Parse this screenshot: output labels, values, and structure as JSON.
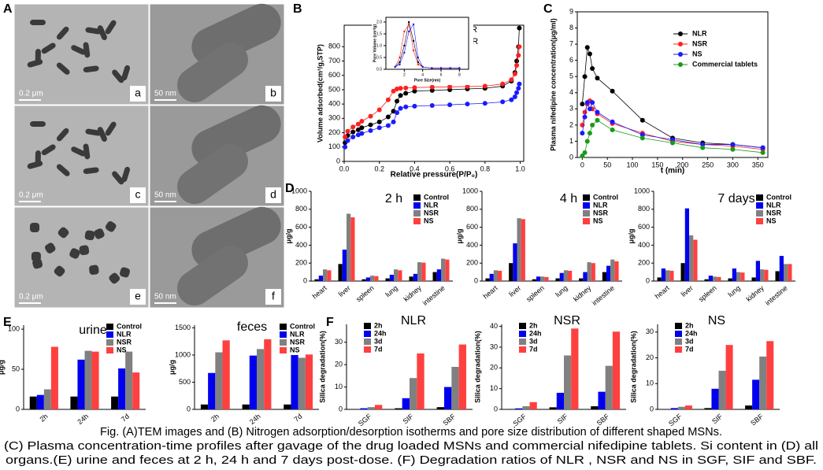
{
  "panel_labels": [
    "A",
    "B",
    "C",
    "D",
    "E",
    "F"
  ],
  "tem_images": [
    {
      "label": "a",
      "scale": "0.2 μm"
    },
    {
      "label": "b",
      "scale": "50 nm"
    },
    {
      "label": "c",
      "scale": "0.2 μm"
    },
    {
      "label": "d",
      "scale": "50 nm"
    },
    {
      "label": "e",
      "scale": "0.2 μm"
    },
    {
      "label": "f",
      "scale": "50 nm"
    }
  ],
  "chart_data": [
    {
      "type": "line",
      "xlabel": "Relative pressure(P/P₀)",
      "ylabel": "Volume adsorbed(cm³/g,STP)",
      "x": [
        0.005,
        0.02,
        0.05,
        0.08,
        0.1,
        0.15,
        0.2,
        0.25,
        0.28,
        0.3,
        0.32,
        0.35,
        0.4,
        0.5,
        0.6,
        0.7,
        0.8,
        0.9,
        0.95,
        0.97,
        0.98,
        0.99,
        0.995
      ],
      "series": [
        {
          "name": "NLR",
          "color": "#000000",
          "values": [
            130,
            180,
            205,
            220,
            235,
            255,
            275,
            310,
            350,
            420,
            460,
            475,
            490,
            495,
            500,
            505,
            510,
            525,
            560,
            620,
            700,
            800,
            930
          ]
        },
        {
          "name": "NSR",
          "color": "#ff2020",
          "values": [
            170,
            210,
            240,
            260,
            280,
            315,
            360,
            430,
            490,
            505,
            510,
            512,
            515,
            518,
            520,
            522,
            525,
            540,
            570,
            610,
            670,
            740,
            800
          ]
        },
        {
          "name": "NS",
          "color": "#1a1aff",
          "values": [
            100,
            145,
            170,
            185,
            195,
            215,
            235,
            250,
            275,
            340,
            370,
            380,
            385,
            390,
            395,
            400,
            405,
            415,
            430,
            450,
            480,
            510,
            540
          ]
        }
      ],
      "xlim": [
        0,
        1.02
      ],
      "xticks": [
        {
          "value": 0,
          "label": "0.0"
        },
        0.2,
        0.4,
        0.6,
        0.8,
        {
          "value": 1,
          "label": "1.0"
        }
      ],
      "ylim": [
        0,
        950
      ],
      "yticks": [
        0,
        100,
        200,
        300,
        400,
        500,
        600,
        700,
        800
      ],
      "legend": "upper right",
      "markers": true
    },
    {
      "type": "line",
      "xlabel": "Pore Size(nm)",
      "ylabel": "Pore Volume (cm³/g)",
      "x": [
        1,
        1.5,
        2,
        2.5,
        3,
        3.5,
        4,
        5,
        6,
        7,
        8
      ],
      "series": [
        {
          "name": "NLR",
          "color": "#000000",
          "values": [
            0.1,
            0.3,
            1.0,
            2.0,
            1.2,
            0.3,
            0.1,
            0.05,
            0.05,
            0.05,
            0.05
          ]
        },
        {
          "name": "NSR",
          "color": "#ff2020",
          "values": [
            0.1,
            0.5,
            1.6,
            1.9,
            0.8,
            0.2,
            0.1,
            0.05,
            0.05,
            0.05,
            0.05
          ]
        },
        {
          "name": "NS",
          "color": "#1a1aff",
          "values": [
            0.1,
            0.2,
            0.7,
            1.6,
            1.9,
            0.5,
            0.1,
            0.05,
            0.05,
            0.05,
            0.05
          ]
        }
      ],
      "xlim": [
        0,
        9
      ],
      "xticks": [
        2,
        4,
        6,
        8
      ],
      "ylim": [
        0,
        2.2
      ],
      "yticks": [
        {
          "value": 0,
          "label": "0.0"
        },
        0.5,
        {
          "value": 1,
          "label": "1.0"
        },
        1.5,
        {
          "value": 2,
          "label": "2.0"
        }
      ],
      "markers": true
    },
    {
      "type": "line",
      "xlabel": "t (min)",
      "ylabel": "Plasma nifedipine concentration(μg/ml)",
      "x": [
        0,
        5,
        10,
        15,
        20,
        30,
        60,
        120,
        180,
        240,
        300,
        360
      ],
      "series": [
        {
          "name": "NLR",
          "color": "#000000",
          "values": [
            3.3,
            5.0,
            6.8,
            6.4,
            5.5,
            4.9,
            4.1,
            2.3,
            1.2,
            0.9,
            0.8,
            0.6
          ]
        },
        {
          "name": "NSR",
          "color": "#ff2020",
          "values": [
            2.0,
            2.8,
            3.3,
            3.5,
            3.0,
            2.7,
            2.1,
            1.5,
            1.0,
            0.8,
            0.7,
            0.5
          ]
        },
        {
          "name": "NS",
          "color": "#1a1aff",
          "values": [
            1.5,
            2.5,
            3.4,
            3.0,
            3.4,
            2.8,
            2.2,
            1.4,
            1.1,
            0.8,
            0.8,
            0.6
          ]
        },
        {
          "name": "Commercial tablets",
          "color": "#1a9a1a",
          "values": [
            0.1,
            0.3,
            1.0,
            1.5,
            2.0,
            2.3,
            1.7,
            1.2,
            0.9,
            0.6,
            0.5,
            0.3
          ]
        }
      ],
      "xlim": [
        -10,
        370
      ],
      "xticks": [
        0,
        50,
        100,
        150,
        200,
        250,
        300,
        350
      ],
      "ylim": [
        0,
        9
      ],
      "yticks": [
        0,
        1,
        2,
        3,
        4,
        5,
        6,
        7,
        8,
        9
      ],
      "legend": "upper right",
      "markers": true
    },
    {
      "type": "bar",
      "title": "2 h",
      "ylabel": "μg/g",
      "categories": [
        "heart",
        "liver",
        "spleen",
        "lung",
        "kidney",
        "intestine"
      ],
      "series": [
        {
          "name": "Control",
          "color": "#000000",
          "values": [
            20,
            190,
            20,
            30,
            50,
            100
          ]
        },
        {
          "name": "NLR",
          "color": "#0000ee",
          "values": [
            60,
            350,
            40,
            70,
            80,
            130
          ]
        },
        {
          "name": "NSR",
          "color": "#808080",
          "values": [
            130,
            750,
            60,
            130,
            210,
            250
          ]
        },
        {
          "name": "NS",
          "color": "#ff4040",
          "values": [
            120,
            710,
            55,
            120,
            205,
            240
          ]
        }
      ],
      "ylim": [
        0,
        1000
      ],
      "yticks": [
        0,
        200,
        400,
        600,
        800,
        1000
      ],
      "legend": "upper right"
    },
    {
      "type": "bar",
      "title": "4 h",
      "ylabel": "μg/g",
      "categories": [
        "heart",
        "liver",
        "spleen",
        "lung",
        "kidney",
        "intestine"
      ],
      "series": [
        {
          "name": "Control",
          "color": "#000000",
          "values": [
            30,
            200,
            20,
            30,
            30,
            100
          ]
        },
        {
          "name": "NLR",
          "color": "#0000ee",
          "values": [
            80,
            420,
            50,
            90,
            100,
            170
          ]
        },
        {
          "name": "NSR",
          "color": "#808080",
          "values": [
            120,
            700,
            50,
            120,
            210,
            240
          ]
        },
        {
          "name": "NS",
          "color": "#ff4040",
          "values": [
            115,
            690,
            45,
            115,
            200,
            220
          ]
        }
      ],
      "ylim": [
        0,
        1000
      ],
      "yticks": [
        0,
        200,
        400,
        600,
        800,
        1000
      ],
      "legend": "upper right"
    },
    {
      "type": "bar",
      "title": "7 days",
      "ylabel": "μg/g",
      "categories": [
        "heart",
        "liver",
        "spleen",
        "lung",
        "kidney",
        "intestine"
      ],
      "series": [
        {
          "name": "Control",
          "color": "#000000",
          "values": [
            40,
            200,
            20,
            30,
            40,
            110
          ]
        },
        {
          "name": "NLR",
          "color": "#0000ee",
          "values": [
            140,
            810,
            60,
            140,
            225,
            280
          ]
        },
        {
          "name": "NSR",
          "color": "#808080",
          "values": [
            120,
            510,
            50,
            100,
            130,
            190
          ]
        },
        {
          "name": "NS",
          "color": "#ff4040",
          "values": [
            115,
            460,
            45,
            95,
            125,
            190
          ]
        }
      ],
      "ylim": [
        0,
        1000
      ],
      "yticks": [
        0,
        200,
        400,
        600,
        800,
        1000
      ],
      "legend": "upper right"
    },
    {
      "type": "bar",
      "title": "urine",
      "ylabel": "μg/g",
      "categories": [
        "2h",
        "24h",
        "7d"
      ],
      "series": [
        {
          "name": "Control",
          "color": "#000000",
          "values": [
            16,
            16,
            16
          ]
        },
        {
          "name": "NLR",
          "color": "#0000ee",
          "values": [
            18,
            62,
            51
          ]
        },
        {
          "name": "NSR",
          "color": "#808080",
          "values": [
            25,
            73,
            72
          ]
        },
        {
          "name": "NS",
          "color": "#ff4040",
          "values": [
            78,
            72,
            46
          ]
        }
      ],
      "ylim": [
        0,
        105
      ],
      "yticks": [
        0,
        50,
        100
      ],
      "legend": "upper right"
    },
    {
      "type": "bar",
      "title": "feces",
      "ylabel": "μg/g",
      "categories": [
        "2h",
        "24h",
        "7d"
      ],
      "series": [
        {
          "name": "Control",
          "color": "#000000",
          "values": [
            90,
            90,
            90
          ]
        },
        {
          "name": "NLR",
          "color": "#0000ee",
          "values": [
            670,
            990,
            1000
          ]
        },
        {
          "name": "NSR",
          "color": "#808080",
          "values": [
            1050,
            1110,
            950
          ]
        },
        {
          "name": "NS",
          "color": "#ff4040",
          "values": [
            1270,
            1290,
            1010
          ]
        }
      ],
      "ylim": [
        0,
        1550
      ],
      "yticks": [
        0,
        500,
        1000,
        1500
      ],
      "legend": "upper right"
    },
    {
      "type": "bar",
      "title": "NLR",
      "ylabel": "Silica degradation(%)",
      "categories": [
        "SGF",
        "SIF",
        "SBF"
      ],
      "series": [
        {
          "name": "2h",
          "color": "#000000",
          "values": [
            0.1,
            0.5,
            1
          ]
        },
        {
          "name": "24h",
          "color": "#0000ee",
          "values": [
            0.5,
            5,
            10
          ]
        },
        {
          "name": "3d",
          "color": "#808080",
          "values": [
            1,
            14,
            19
          ]
        },
        {
          "name": "7d",
          "color": "#ff4040",
          "values": [
            2,
            25,
            29
          ]
        }
      ],
      "ylim": [
        0,
        38
      ],
      "yticks": [
        0,
        10,
        20,
        30
      ],
      "legend": "upper left"
    },
    {
      "type": "bar",
      "title": "NSR",
      "ylabel": "Silica degradation(%)",
      "categories": [
        "SGF",
        "SIF",
        "SBF"
      ],
      "series": [
        {
          "name": "2h",
          "color": "#000000",
          "values": [
            0.2,
            1,
            1.5
          ]
        },
        {
          "name": "24h",
          "color": "#0000ee",
          "values": [
            0.5,
            8,
            8.5
          ]
        },
        {
          "name": "3d",
          "color": "#808080",
          "values": [
            1.5,
            26,
            21
          ]
        },
        {
          "name": "7d",
          "color": "#ff4040",
          "values": [
            3.5,
            39,
            37.5
          ]
        }
      ],
      "ylim": [
        0,
        41
      ],
      "yticks": [
        0,
        10,
        20,
        30,
        40
      ],
      "legend": "upper left"
    },
    {
      "type": "bar",
      "title": "NS",
      "ylabel": "Silica degradation(%)",
      "categories": [
        "SGF",
        "SIF",
        "SBF"
      ],
      "series": [
        {
          "name": "2h",
          "color": "#000000",
          "values": [
            0.1,
            0.5,
            1.5
          ]
        },
        {
          "name": "24h",
          "color": "#0000ee",
          "values": [
            0.5,
            8,
            11.5
          ]
        },
        {
          "name": "3d",
          "color": "#808080",
          "values": [
            1,
            15,
            20.5
          ]
        },
        {
          "name": "7d",
          "color": "#ff4040",
          "values": [
            1.5,
            25,
            26.5
          ]
        }
      ],
      "ylim": [
        0,
        33
      ],
      "yticks": [
        0,
        10,
        20,
        30
      ],
      "legend": "upper left"
    }
  ],
  "caption": [
    "Fig. (A)TEM images and (B) Nitrogen adsorption/desorption isotherms and pore size distribution of different shaped MSNs.",
    "(C) Plasma concentration-time profiles after gavage of the drug loaded MSNs and commercial nifedipine tablets. Si content in (D) all",
    "organs.(E) urine and feces at 2 h,  24 h and  7 days post-dose. (F) Degradation ratios of NLR , NSR  and NS in SGF, SIF and SBF."
  ]
}
